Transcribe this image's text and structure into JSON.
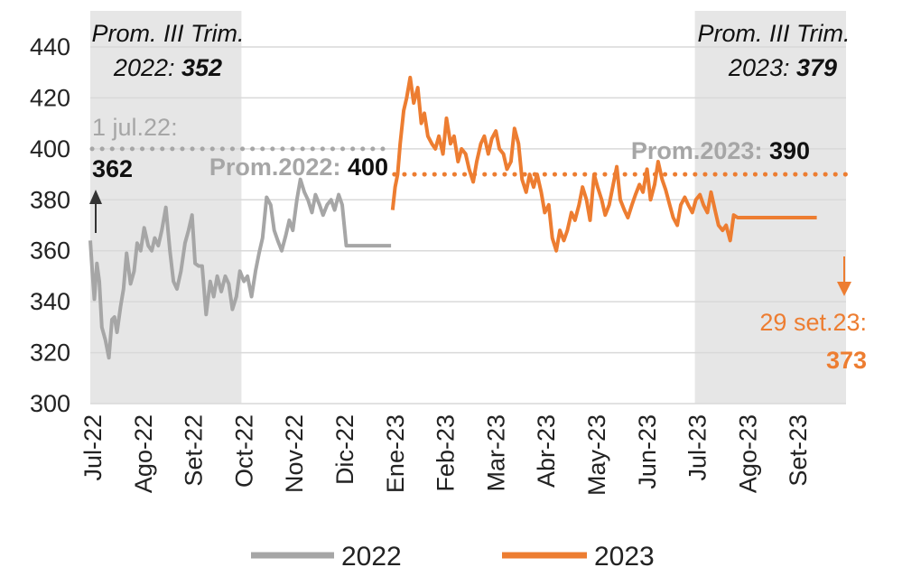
{
  "chart_data": {
    "type": "line",
    "title": "",
    "xlabel": "",
    "ylabel": "",
    "ylim": [
      300,
      440
    ],
    "yticks": [
      300,
      320,
      340,
      360,
      380,
      400,
      420,
      440
    ],
    "categories": [
      "Jul-22",
      "Ago-22",
      "Set-22",
      "Oct-22",
      "Nov-22",
      "Dic-22",
      "Ene-23",
      "Feb-23",
      "Mar-23",
      "Abr-23",
      "May-23",
      "Jun-23",
      "Jul-23",
      "Ago-23",
      "Set-23"
    ],
    "grid": "horizontal",
    "legend_position": "bottom",
    "shaded_periods": [
      "Jul-22 to Set-22",
      "Jul-23 to Set-23"
    ],
    "series": [
      {
        "name": "2022",
        "color": "#a6a6a6",
        "x": [
          0.0,
          0.04,
          0.08,
          0.13,
          0.18,
          0.23,
          0.3,
          0.37,
          0.43,
          0.48,
          0.53,
          0.6,
          0.66,
          0.72,
          0.8,
          0.87,
          0.93,
          1.0,
          1.07,
          1.15,
          1.22,
          1.28,
          1.35,
          1.42,
          1.5,
          1.58,
          1.65,
          1.72,
          1.8,
          1.88,
          1.95,
          2.02,
          2.08,
          2.15,
          2.22,
          2.3,
          2.38,
          2.45,
          2.52,
          2.6,
          2.68,
          2.75,
          2.82,
          2.9,
          2.97,
          3.05,
          3.12,
          3.2,
          3.28,
          3.35,
          3.42,
          3.5,
          3.58,
          3.65,
          3.72,
          3.8,
          3.88,
          3.95,
          4.02,
          4.1,
          4.17,
          4.25,
          4.32,
          4.4,
          4.47,
          4.55,
          4.62,
          4.7,
          4.78,
          4.85,
          4.93,
          5.0,
          5.08,
          5.15,
          5.22,
          5.3,
          5.38,
          5.45,
          5.52,
          5.6,
          5.68,
          5.75,
          5.82,
          5.9,
          5.97
        ],
        "values": [
          364,
          352,
          341,
          355,
          348,
          330,
          325,
          318,
          333,
          334,
          328,
          338,
          345,
          359,
          347,
          352,
          363,
          360,
          369,
          362,
          360,
          365,
          362,
          368,
          377,
          360,
          348,
          345,
          352,
          363,
          368,
          374,
          355,
          354,
          354,
          335,
          348,
          342,
          350,
          344,
          350,
          347,
          337,
          342,
          352,
          348,
          350,
          342,
          352,
          359,
          365,
          381,
          378,
          368,
          364,
          360,
          366,
          372,
          368,
          380,
          388,
          383,
          380,
          375,
          382,
          378,
          374,
          378,
          380,
          376,
          382,
          378,
          362,
          362,
          362,
          362,
          362,
          362,
          362,
          362,
          362,
          362,
          362,
          362,
          362
        ]
      },
      {
        "name": "2023",
        "color": "#ed7d31",
        "x": [
          6.0,
          6.05,
          6.1,
          6.15,
          6.22,
          6.28,
          6.35,
          6.42,
          6.5,
          6.57,
          6.63,
          6.7,
          6.78,
          6.85,
          6.92,
          7.0,
          7.07,
          7.15,
          7.22,
          7.3,
          7.37,
          7.45,
          7.52,
          7.6,
          7.67,
          7.75,
          7.82,
          7.9,
          7.97,
          8.05,
          8.12,
          8.2,
          8.27,
          8.35,
          8.42,
          8.5,
          8.57,
          8.65,
          8.72,
          8.8,
          8.87,
          8.95,
          9.02,
          9.1,
          9.17,
          9.25,
          9.32,
          9.4,
          9.47,
          9.55,
          9.62,
          9.7,
          9.77,
          9.85,
          9.92,
          10.0,
          10.07,
          10.15,
          10.22,
          10.3,
          10.37,
          10.45,
          10.52,
          10.6,
          10.67,
          10.75,
          10.82,
          10.9,
          10.97,
          11.05,
          11.12,
          11.2,
          11.27,
          11.35,
          11.42,
          11.5,
          11.57,
          11.65,
          11.72,
          11.8,
          11.87,
          11.95,
          12.02,
          12.1,
          12.17,
          12.25,
          12.32,
          12.4,
          12.47,
          12.55,
          12.62,
          12.7,
          12.77,
          12.85,
          12.92,
          13.0,
          13.07,
          13.15,
          13.22,
          13.3,
          13.37,
          13.45,
          13.52,
          13.6,
          13.67,
          13.75,
          13.82,
          13.9,
          13.97,
          14.05,
          14.12,
          14.2,
          14.27,
          14.35,
          14.42
        ],
        "values": [
          376,
          385,
          390,
          402,
          415,
          420,
          428,
          418,
          424,
          410,
          414,
          405,
          402,
          400,
          405,
          398,
          412,
          402,
          405,
          395,
          400,
          398,
          392,
          387,
          395,
          402,
          405,
          398,
          404,
          407,
          400,
          398,
          392,
          395,
          408,
          402,
          388,
          383,
          390,
          385,
          390,
          383,
          375,
          378,
          365,
          360,
          368,
          364,
          368,
          375,
          372,
          378,
          385,
          380,
          372,
          390,
          385,
          380,
          374,
          378,
          385,
          393,
          380,
          376,
          373,
          378,
          382,
          386,
          383,
          392,
          380,
          386,
          395,
          388,
          384,
          378,
          373,
          370,
          378,
          381,
          378,
          375,
          380,
          382,
          378,
          375,
          383,
          376,
          370,
          368,
          370,
          364,
          374,
          373,
          373,
          373,
          373,
          373,
          373,
          373,
          373,
          373,
          373,
          373,
          373,
          373,
          373,
          373,
          373,
          373,
          373,
          373,
          373,
          373,
          373
        ]
      }
    ],
    "reference_lines": [
      {
        "label": "Prom.2022: ",
        "label_value": "400",
        "value": 400,
        "series": "2022",
        "x_start": 0.0,
        "x_end": 6.0
      },
      {
        "label": "Prom.2023: ",
        "label_value": "390",
        "value": 390,
        "series": "2023",
        "x_start": 6.0,
        "x_end": 15.0
      }
    ],
    "annotations": [
      {
        "line1": "Prom. III Trim.",
        "line2_prefix": "2022: ",
        "line2_value": "352"
      },
      {
        "line1": "Prom. III Trim.",
        "line2_prefix": "2023: ",
        "line2_value": "379"
      },
      {
        "line1": "1 jul.22:",
        "line2": "362"
      },
      {
        "line1": "29 set.23:",
        "line2": "373"
      }
    ]
  }
}
